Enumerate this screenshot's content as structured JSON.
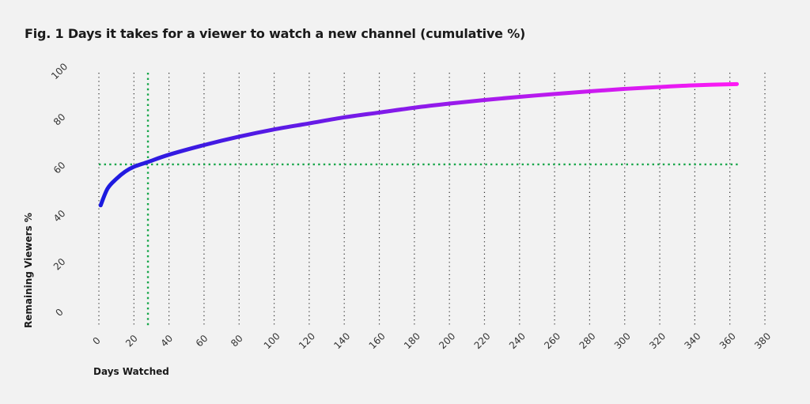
{
  "title": "Fig. 1 Days it takes for a viewer to watch a new channel (cumulative %)",
  "colors": {
    "background": "#f2f2f2",
    "grid": "#2b2b2b",
    "reference": "#17a64a",
    "line_start": "#1a1adf",
    "line_end": "#ff1af5"
  },
  "chart_data": {
    "type": "line",
    "title": "Fig. 1 Days it takes for a viewer to watch a new channel (cumulative %)",
    "xlabel": "Days Watched",
    "ylabel": "Remaining Viewers %",
    "xlim": [
      0,
      380
    ],
    "ylim": [
      0,
      100
    ],
    "x_ticks": [
      0,
      20,
      40,
      60,
      80,
      100,
      120,
      140,
      160,
      180,
      200,
      220,
      240,
      260,
      280,
      300,
      320,
      340,
      360,
      380
    ],
    "y_ticks": [
      0,
      20,
      40,
      60,
      80,
      100
    ],
    "grid": "vertical dotted",
    "reference_lines": {
      "x": 28,
      "y": 62
    },
    "series": [
      {
        "x": [
          1,
          5,
          10,
          15,
          20,
          28,
          40,
          60,
          80,
          100,
          120,
          140,
          160,
          180,
          200,
          220,
          240,
          260,
          280,
          300,
          320,
          340,
          364
        ],
        "values": [
          45,
          52,
          56,
          59,
          61,
          63,
          66,
          70,
          73.5,
          76.5,
          79,
          81.5,
          83.5,
          85.5,
          87.2,
          88.7,
          90,
          91.2,
          92.3,
          93.3,
          94.1,
          94.8,
          95.3
        ]
      }
    ]
  }
}
